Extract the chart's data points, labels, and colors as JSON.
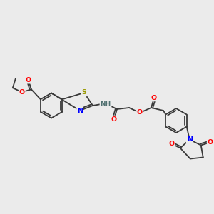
{
  "bg_color": "#ebebeb",
  "bond_color": "#3a3a3a",
  "atom_colors": {
    "O": "#ff0000",
    "N": "#0000ff",
    "S": "#999900",
    "H": "#507070",
    "C": "#3a3a3a"
  },
  "lw": 1.3,
  "fs": 6.8
}
